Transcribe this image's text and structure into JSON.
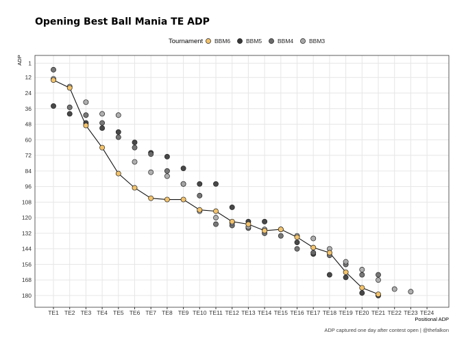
{
  "chart_data": {
    "type": "scatter",
    "title": "Opening Best Ball Mania TE ADP",
    "xlabel": "Positional ADP",
    "ylabel": "ADP",
    "caption": "ADP captured one day after contest open | @thefalkon",
    "legend_title": "Tournament",
    "legend_position": "top",
    "grid": true,
    "y_reversed": true,
    "ylim": [
      -5,
      189
    ],
    "y_ticks": [
      1,
      12,
      24,
      36,
      48,
      60,
      72,
      84,
      96,
      108,
      120,
      132,
      144,
      156,
      168,
      180
    ],
    "categories": [
      "TE1",
      "TE2",
      "TE3",
      "TE4",
      "TE5",
      "TE6",
      "TE7",
      "TE8",
      "TE9",
      "TE10",
      "TE11",
      "TE12",
      "TE13",
      "TE14",
      "TE15",
      "TE16",
      "TE17",
      "TE18",
      "TE19",
      "TE20",
      "TE21",
      "TE22",
      "TE23",
      "TE24"
    ],
    "series": [
      {
        "name": "BBM6",
        "color": "#f2c26b",
        "line": true,
        "values": [
          14,
          20,
          49,
          66,
          86,
          97,
          105,
          106,
          106,
          114,
          115,
          123,
          125,
          130,
          129,
          135,
          143,
          147,
          162,
          174,
          179,
          null,
          null,
          null
        ]
      },
      {
        "name": "BBM5",
        "color": "#383838",
        "values": [
          34,
          40,
          47,
          51,
          54,
          62,
          70,
          73,
          82,
          94,
          94,
          112,
          123,
          123,
          129,
          139,
          148,
          164,
          166,
          178,
          180,
          null,
          null,
          null
        ]
      },
      {
        "name": "BBM4",
        "color": "#6b6b6b",
        "values": [
          6,
          35,
          41,
          47,
          58,
          66,
          71,
          84,
          94,
          103,
          125,
          126,
          128,
          132,
          134,
          144,
          147,
          149,
          156,
          164,
          164,
          null,
          null,
          null
        ]
      },
      {
        "name": "BBM3",
        "color": "#a8a8a8",
        "values": [
          13,
          19,
          31,
          40,
          41,
          77,
          85,
          88,
          94,
          115,
          120,
          124,
          127,
          129,
          129,
          134,
          136,
          144,
          154,
          160,
          168,
          175,
          177,
          null
        ]
      }
    ]
  }
}
